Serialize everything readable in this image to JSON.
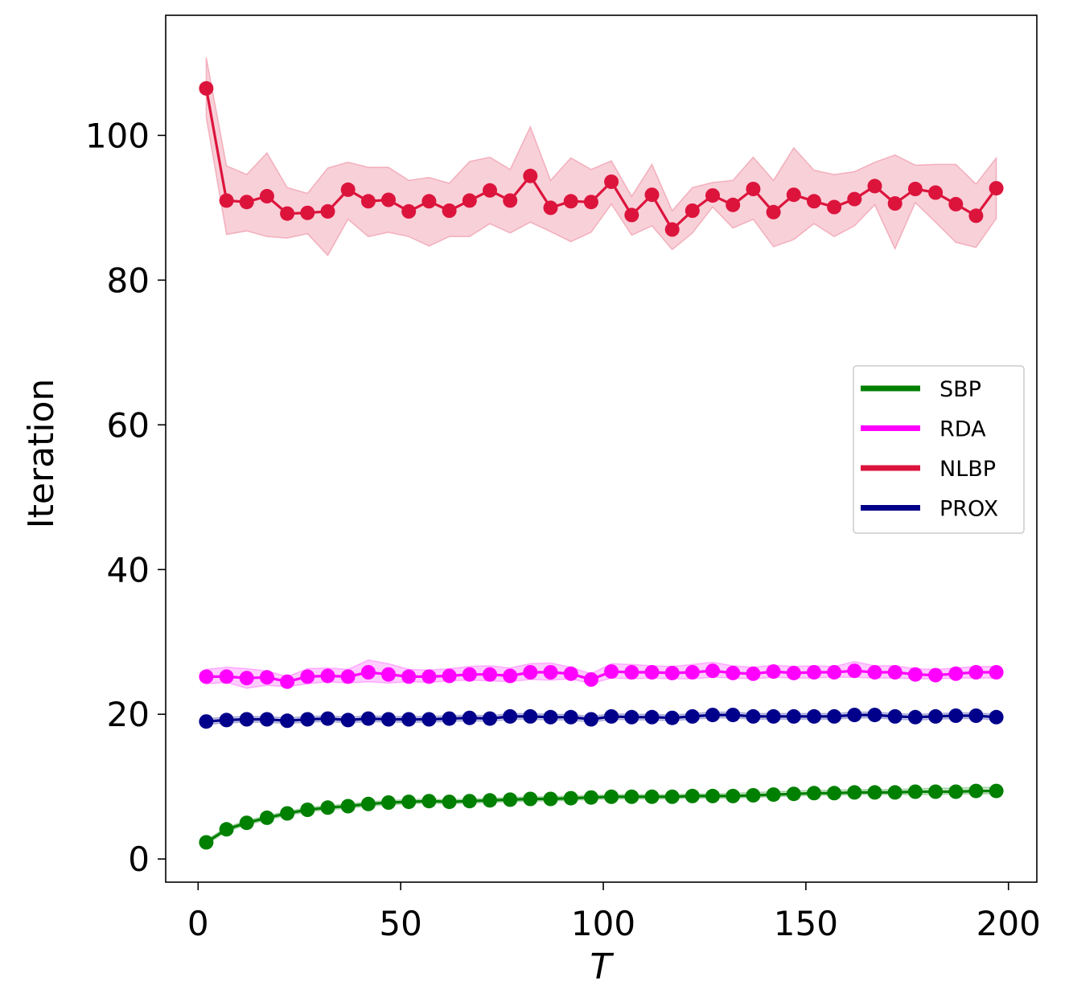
{
  "chart_data": {
    "type": "line",
    "title": "",
    "xlabel": "T",
    "ylabel": "Iteration",
    "xlim": [
      -8,
      207
    ],
    "ylim": [
      -3.2,
      116.6
    ],
    "xticks": [
      0,
      50,
      100,
      150,
      200
    ],
    "yticks": [
      0,
      20,
      40,
      60,
      80,
      100
    ],
    "xtick_labels": [
      "0",
      "50",
      "100",
      "150",
      "200"
    ],
    "ytick_labels": [
      "0",
      "20",
      "40",
      "60",
      "80",
      "100"
    ],
    "legend_position": "center-right",
    "x": [
      2,
      7,
      12,
      17,
      22,
      27,
      32,
      37,
      42,
      47,
      52,
      57,
      62,
      67,
      72,
      77,
      82,
      87,
      92,
      97,
      102,
      107,
      112,
      117,
      122,
      127,
      132,
      137,
      142,
      147,
      152,
      157,
      162,
      167,
      172,
      177,
      182,
      187,
      192,
      197
    ],
    "series": [
      {
        "name": "SBP",
        "color": "#008000",
        "values": [
          2.3,
          4.1,
          5.0,
          5.7,
          6.3,
          6.8,
          7.1,
          7.3,
          7.6,
          7.8,
          7.9,
          8.0,
          7.9,
          8.0,
          8.1,
          8.2,
          8.3,
          8.3,
          8.4,
          8.5,
          8.6,
          8.6,
          8.6,
          8.6,
          8.7,
          8.7,
          8.7,
          8.8,
          8.9,
          9.0,
          9.1,
          9.1,
          9.2,
          9.2,
          9.2,
          9.3,
          9.3,
          9.3,
          9.4,
          9.4
        ],
        "lower": [
          2.0,
          3.8,
          4.7,
          5.4,
          6.0,
          6.5,
          6.8,
          7.0,
          7.3,
          7.5,
          7.6,
          7.7,
          7.6,
          7.7,
          7.8,
          7.9,
          8.0,
          8.0,
          8.1,
          8.2,
          8.3,
          8.3,
          8.3,
          8.3,
          8.4,
          8.4,
          8.4,
          8.5,
          8.6,
          8.7,
          8.8,
          8.8,
          8.9,
          8.9,
          8.9,
          8.9,
          8.9,
          9.0,
          9.0,
          9.0
        ],
        "upper": [
          2.6,
          4.4,
          5.3,
          6.0,
          6.6,
          7.1,
          7.4,
          7.6,
          7.9,
          8.1,
          8.2,
          8.3,
          8.2,
          8.3,
          8.4,
          8.5,
          8.6,
          8.6,
          8.7,
          8.8,
          8.9,
          8.9,
          8.9,
          8.9,
          9.0,
          9.0,
          9.1,
          9.2,
          9.3,
          9.4,
          9.5,
          9.5,
          9.6,
          9.6,
          9.6,
          9.7,
          9.8,
          9.8,
          9.9,
          9.9
        ]
      },
      {
        "name": "RDA",
        "color": "#ff00ff",
        "values": [
          25.2,
          25.2,
          25.0,
          25.1,
          24.5,
          25.2,
          25.3,
          25.2,
          25.8,
          25.5,
          25.2,
          25.2,
          25.3,
          25.5,
          25.5,
          25.3,
          25.8,
          25.8,
          25.6,
          24.8,
          25.9,
          25.8,
          25.8,
          25.7,
          25.8,
          26.0,
          25.7,
          25.6,
          25.9,
          25.7,
          25.8,
          25.8,
          26.0,
          25.8,
          25.8,
          25.5,
          25.4,
          25.6,
          25.8,
          25.8
        ],
        "lower": [
          24.2,
          24.4,
          23.6,
          24.0,
          23.8,
          24.2,
          24.5,
          24.3,
          24.5,
          24.3,
          24.5,
          24.4,
          24.6,
          24.7,
          24.6,
          24.5,
          24.8,
          24.7,
          24.9,
          24.2,
          25.0,
          24.9,
          25.0,
          24.9,
          24.9,
          25.1,
          25.0,
          24.9,
          25.1,
          25.0,
          25.0,
          25.1,
          25.1,
          25.0,
          25.0,
          24.9,
          24.9,
          25.0,
          25.0,
          25.0
        ],
        "upper": [
          26.2,
          26.5,
          26.3,
          26.0,
          25.2,
          26.3,
          26.4,
          26.2,
          27.5,
          27.0,
          26.2,
          26.1,
          26.3,
          26.6,
          26.7,
          26.4,
          27.0,
          27.1,
          26.5,
          25.6,
          27.0,
          26.9,
          26.7,
          26.6,
          26.9,
          27.2,
          26.7,
          26.5,
          26.8,
          26.6,
          26.7,
          26.6,
          27.3,
          26.7,
          26.7,
          26.3,
          26.2,
          26.4,
          26.6,
          26.6
        ]
      },
      {
        "name": "NLBP",
        "color": "#dc143c",
        "values": [
          106.5,
          91.0,
          90.8,
          91.6,
          89.2,
          89.3,
          89.5,
          92.5,
          90.9,
          91.1,
          89.5,
          90.9,
          89.6,
          91.0,
          92.4,
          91.0,
          94.4,
          90.0,
          90.9,
          90.8,
          93.6,
          89.0,
          91.8,
          87.0,
          89.6,
          91.7,
          90.4,
          92.6,
          89.4,
          91.8,
          90.9,
          90.1,
          91.2,
          93.0,
          90.6,
          92.6,
          92.1,
          90.5,
          88.9,
          92.7
        ],
        "lower": [
          102.5,
          86.3,
          86.8,
          86.0,
          85.8,
          86.4,
          83.4,
          88.4,
          86.0,
          86.6,
          86.0,
          84.7,
          86.0,
          86.0,
          87.8,
          86.5,
          88.0,
          86.7,
          85.3,
          86.6,
          90.5,
          86.2,
          87.5,
          84.2,
          86.5,
          90.1,
          87.2,
          88.4,
          84.6,
          85.6,
          87.8,
          86.0,
          87.5,
          90.4,
          84.3,
          90.7,
          88.0,
          85.2,
          84.5,
          88.5
        ],
        "upper": [
          110.8,
          95.8,
          94.6,
          97.6,
          92.8,
          92.0,
          95.5,
          96.3,
          95.6,
          95.6,
          93.8,
          94.2,
          93.4,
          96.4,
          97.0,
          95.3,
          101.2,
          93.8,
          96.9,
          95.3,
          96.5,
          91.6,
          96.0,
          89.6,
          92.8,
          93.5,
          93.8,
          97.0,
          93.8,
          98.3,
          95.2,
          94.6,
          95.0,
          96.3,
          97.3,
          95.9,
          96.0,
          96.0,
          93.3,
          96.9
        ]
      },
      {
        "name": "PROX",
        "color": "#00008b",
        "values": [
          19.0,
          19.2,
          19.3,
          19.3,
          19.1,
          19.3,
          19.4,
          19.2,
          19.4,
          19.3,
          19.3,
          19.3,
          19.4,
          19.5,
          19.4,
          19.7,
          19.7,
          19.6,
          19.6,
          19.3,
          19.7,
          19.6,
          19.6,
          19.5,
          19.7,
          19.9,
          19.9,
          19.7,
          19.7,
          19.7,
          19.7,
          19.7,
          19.9,
          19.9,
          19.7,
          19.6,
          19.7,
          19.8,
          19.8,
          19.6
        ],
        "lower": [
          18.6,
          18.8,
          18.9,
          18.9,
          18.7,
          18.9,
          19.0,
          18.8,
          19.0,
          18.9,
          18.9,
          18.9,
          19.0,
          19.1,
          19.0,
          19.3,
          19.3,
          19.2,
          19.2,
          18.9,
          19.3,
          19.2,
          19.2,
          19.1,
          19.3,
          19.5,
          19.5,
          19.3,
          19.3,
          19.3,
          19.3,
          19.3,
          19.5,
          19.5,
          19.3,
          19.2,
          19.3,
          19.4,
          19.4,
          19.2
        ],
        "upper": [
          19.4,
          19.6,
          19.7,
          19.7,
          19.5,
          19.7,
          19.8,
          19.6,
          19.8,
          19.7,
          19.7,
          19.7,
          19.8,
          19.9,
          19.8,
          20.1,
          20.1,
          20.0,
          20.0,
          19.7,
          20.1,
          20.0,
          20.0,
          19.9,
          20.1,
          20.3,
          20.3,
          20.1,
          20.1,
          20.1,
          20.1,
          20.1,
          20.3,
          20.3,
          20.1,
          20.0,
          20.1,
          20.2,
          20.2,
          20.0
        ]
      }
    ]
  }
}
